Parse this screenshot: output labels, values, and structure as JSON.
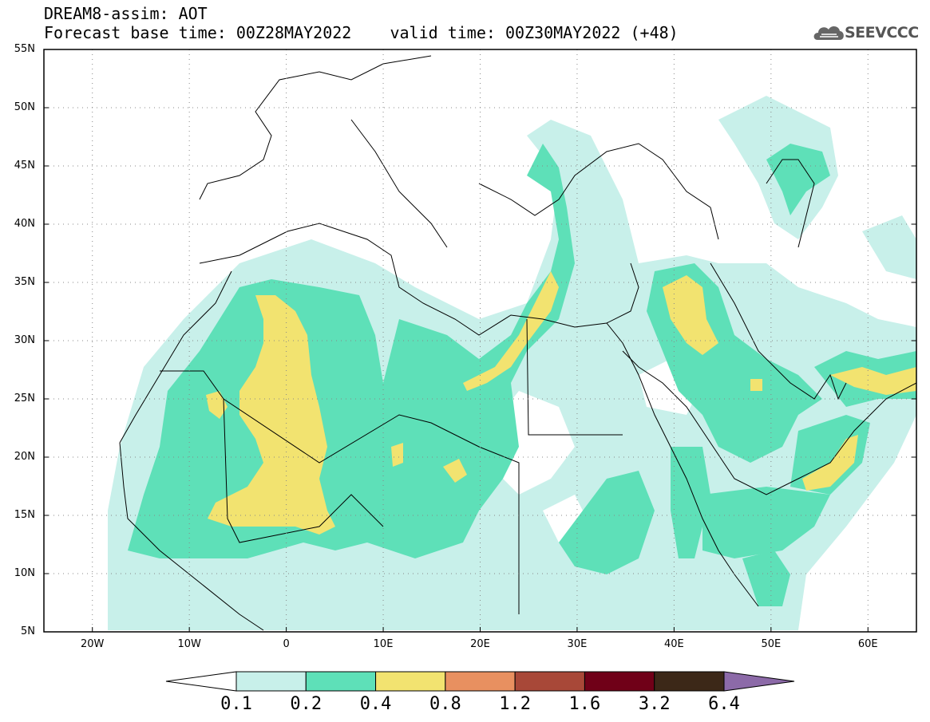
{
  "title": {
    "line1": "DREAM8-assim: AOT",
    "line2": "Forecast base time: 00Z28MAY2022    valid time: 00Z30MAY2022 (+48)"
  },
  "logo": {
    "text": "SEEVCCC",
    "icon": "cloud-icon"
  },
  "map": {
    "lat_labels": [
      "55N",
      "50N",
      "45N",
      "40N",
      "35N",
      "30N",
      "25N",
      "20N",
      "15N",
      "10N",
      "5N"
    ],
    "lon_labels": [
      "20W",
      "10W",
      "0",
      "10E",
      "20E",
      "30E",
      "40E",
      "50E",
      "60E"
    ],
    "extent": {
      "lon": [
        -25,
        65
      ],
      "lat": [
        5,
        55
      ]
    },
    "grid": "dotted"
  },
  "colorbar": {
    "levels": [
      "0.1",
      "0.2",
      "0.4",
      "0.8",
      "1.2",
      "1.6",
      "3.2",
      "6.4"
    ],
    "colors": [
      "#ffffff",
      "#c8f0ea",
      "#5ee0b8",
      "#f2e370",
      "#e89060",
      "#a84838",
      "#700018",
      "#3c2818",
      "#8c6aa8"
    ]
  }
}
